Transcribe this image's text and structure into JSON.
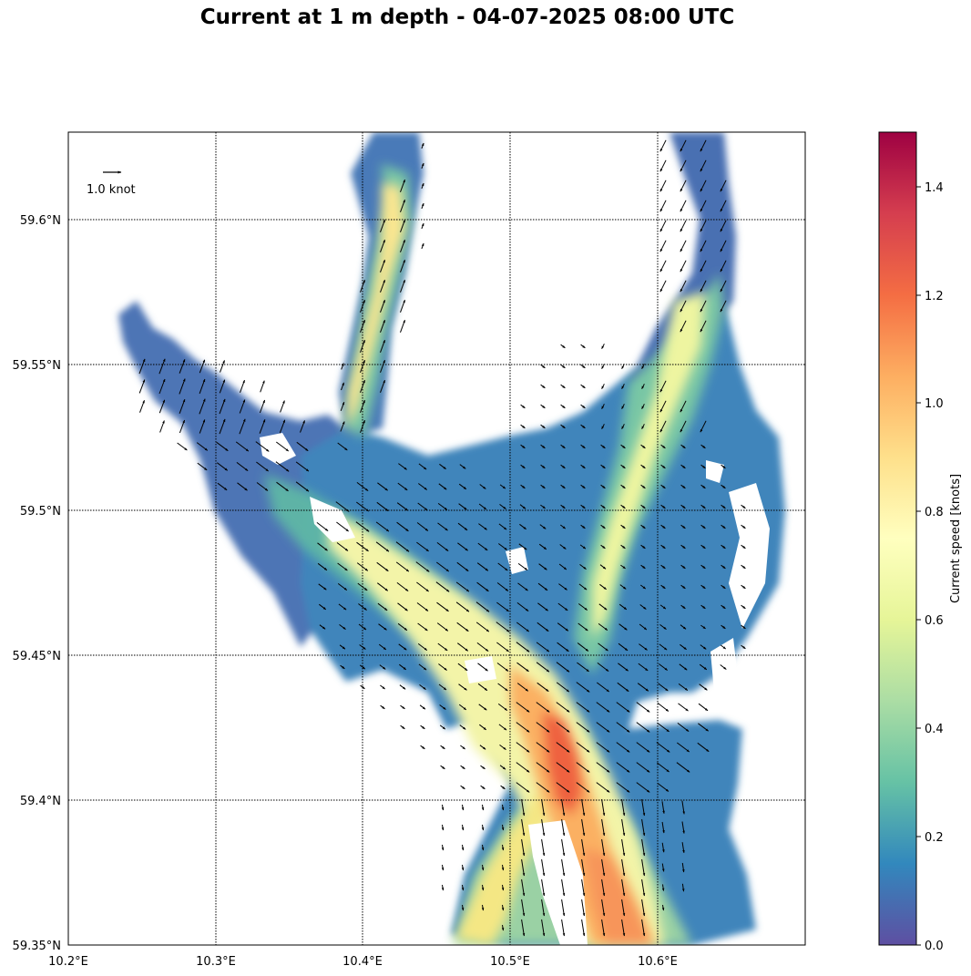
{
  "title": "Current at 1 m depth - 04-07-2025 08:00 UTC",
  "map": {
    "x_ticks": [
      "10.2°E",
      "10.3°E",
      "10.4°E",
      "10.5°E",
      "10.6°E"
    ],
    "y_ticks": [
      "59.6°N",
      "59.55°N",
      "59.5°N",
      "59.45°N",
      "59.4°N",
      "59.35°N"
    ],
    "lon_range": [
      10.2,
      10.7
    ],
    "lat_range": [
      59.35,
      59.63
    ],
    "grid": true,
    "grid_style": "dotted",
    "reference_arrow_label": "1.0 knot",
    "reference_arrow_position": "top-left"
  },
  "colorbar": {
    "label": "Current speed [knots]",
    "ticks": [
      "0.0",
      "0.2",
      "0.4",
      "0.6",
      "0.8",
      "1.0",
      "1.2",
      "1.4"
    ],
    "range": [
      0,
      1.5
    ],
    "colormap": "Spectral_r",
    "colors": [
      "#5e4fa2",
      "#3288bd",
      "#66c2a5",
      "#abdda4",
      "#e6f598",
      "#ffffbf",
      "#fee08b",
      "#fdae61",
      "#f46d43",
      "#d53e4f",
      "#9e0142"
    ]
  }
}
